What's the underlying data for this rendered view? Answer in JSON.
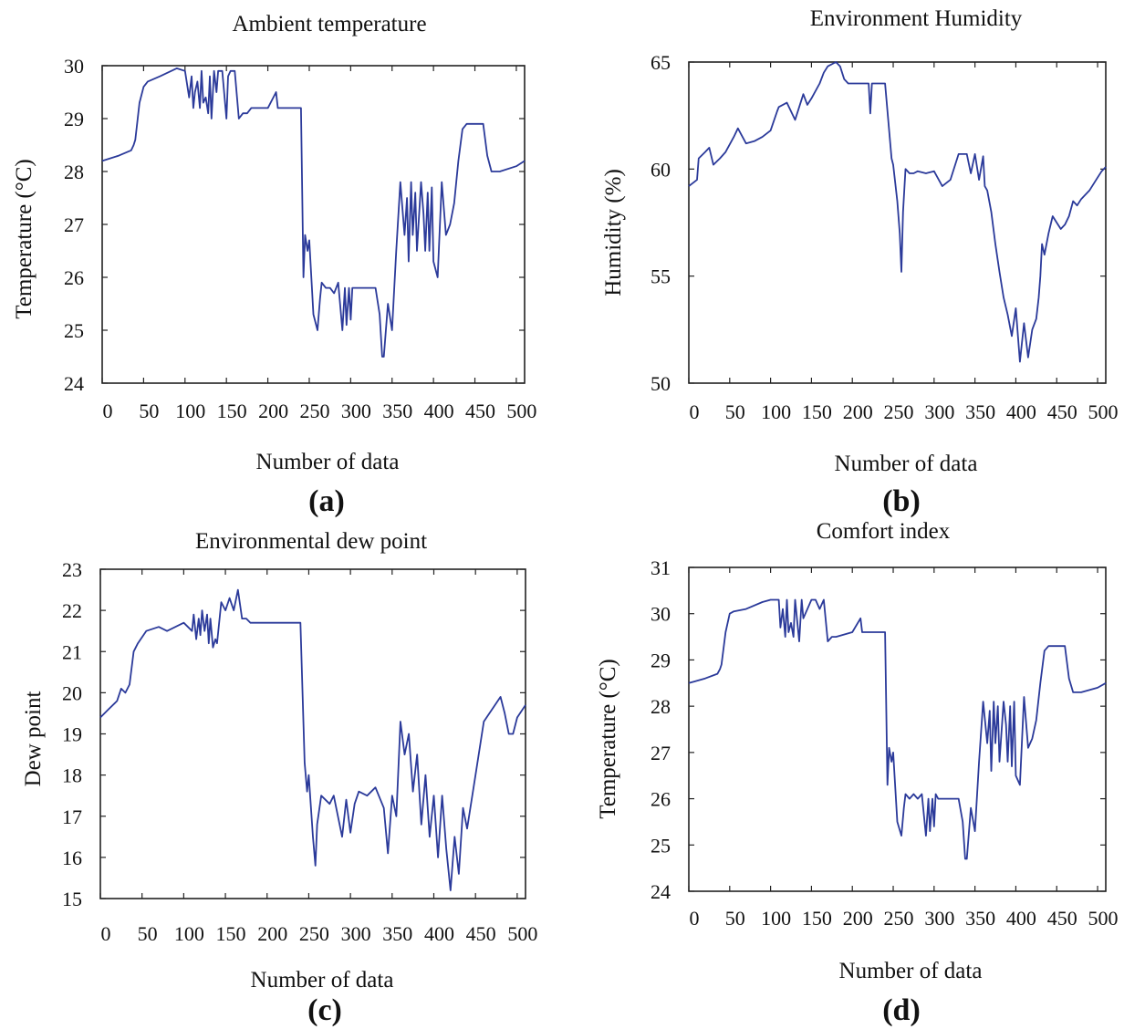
{
  "chart_data": [
    {
      "type": "line",
      "panel_label": "(a)",
      "title": "Ambient temperature",
      "xlabel": "Number of data",
      "ylabel": "Temperature (°C)",
      "xlim": [
        0,
        510
      ],
      "ylim": [
        24,
        30
      ],
      "xticks": [
        0,
        50,
        100,
        150,
        200,
        250,
        300,
        350,
        400,
        450,
        500
      ],
      "yticks": [
        24,
        25,
        26,
        27,
        28,
        29,
        30
      ],
      "grid": false,
      "series": [
        {
          "name": "Ambient temperature",
          "color": "#2b3a9a",
          "x": [
            0,
            20,
            35,
            38,
            40,
            45,
            50,
            55,
            70,
            90,
            100,
            105,
            108,
            110,
            112,
            115,
            118,
            120,
            122,
            125,
            128,
            130,
            132,
            135,
            138,
            140,
            145,
            150,
            152,
            155,
            160,
            165,
            170,
            175,
            180,
            200,
            210,
            212,
            215,
            240,
            243,
            245,
            248,
            250,
            255,
            260,
            263,
            265,
            270,
            275,
            280,
            285,
            290,
            293,
            295,
            298,
            300,
            302,
            305,
            320,
            330,
            335,
            338,
            340,
            345,
            350,
            355,
            360,
            365,
            368,
            370,
            373,
            375,
            378,
            380,
            385,
            388,
            390,
            393,
            395,
            398,
            400,
            405,
            410,
            415,
            420,
            425,
            430,
            435,
            440,
            445,
            460,
            465,
            470,
            480,
            500,
            510
          ],
          "y": [
            28.2,
            28.3,
            28.4,
            28.5,
            28.6,
            29.3,
            29.6,
            29.7,
            29.8,
            29.95,
            29.9,
            29.4,
            29.8,
            29.2,
            29.5,
            29.7,
            29.2,
            29.9,
            29.3,
            29.4,
            29.1,
            29.8,
            29.0,
            29.9,
            29.5,
            29.9,
            29.9,
            29.0,
            29.8,
            29.9,
            29.9,
            29.0,
            29.1,
            29.1,
            29.2,
            29.2,
            29.5,
            29.2,
            29.2,
            29.2,
            26.0,
            26.8,
            26.5,
            26.7,
            25.3,
            25.0,
            25.6,
            25.9,
            25.8,
            25.8,
            25.7,
            25.9,
            25.0,
            25.8,
            25.1,
            25.8,
            25.2,
            25.8,
            25.8,
            25.8,
            25.8,
            25.3,
            24.5,
            24.5,
            25.5,
            25.0,
            26.5,
            27.8,
            26.8,
            27.5,
            26.3,
            27.8,
            26.8,
            27.6,
            26.5,
            27.8,
            27.2,
            26.5,
            27.6,
            26.5,
            27.7,
            26.3,
            26.0,
            27.8,
            26.8,
            27.0,
            27.4,
            28.2,
            28.8,
            28.9,
            28.9,
            28.9,
            28.3,
            28.0,
            28.0,
            28.1,
            28.2
          ]
        }
      ]
    },
    {
      "type": "line",
      "panel_label": "(b)",
      "title": "Environment Humidity",
      "xlabel": "Number of data",
      "ylabel": "Humidity (%)",
      "xlim": [
        0,
        510
      ],
      "ylim": [
        50,
        65
      ],
      "xticks": [
        0,
        50,
        100,
        150,
        200,
        250,
        300,
        350,
        400,
        450,
        500
      ],
      "yticks": [
        50,
        55,
        60,
        65
      ],
      "grid": false,
      "series": [
        {
          "name": "Environment Humidity",
          "color": "#2b3a9a",
          "x": [
            0,
            10,
            12,
            20,
            25,
            30,
            38,
            45,
            55,
            60,
            70,
            80,
            90,
            100,
            108,
            110,
            120,
            130,
            140,
            145,
            150,
            160,
            165,
            170,
            180,
            185,
            190,
            195,
            200,
            210,
            220,
            222,
            224,
            230,
            240,
            248,
            250,
            255,
            258,
            260,
            262,
            265,
            270,
            275,
            280,
            290,
            300,
            310,
            320,
            330,
            340,
            345,
            350,
            355,
            360,
            362,
            365,
            370,
            375,
            380,
            385,
            390,
            395,
            400,
            405,
            410,
            415,
            420,
            425,
            428,
            430,
            432,
            435,
            440,
            445,
            450,
            455,
            460,
            465,
            470,
            475,
            480,
            490,
            500,
            505,
            510
          ],
          "y": [
            59.2,
            59.5,
            60.5,
            60.8,
            61.0,
            60.2,
            60.5,
            60.8,
            61.5,
            61.9,
            61.2,
            61.3,
            61.5,
            61.8,
            62.7,
            62.9,
            63.1,
            62.3,
            63.5,
            63.0,
            63.3,
            64.0,
            64.5,
            64.8,
            65.0,
            64.8,
            64.2,
            64.0,
            64.0,
            64.0,
            64.0,
            62.6,
            64.0,
            64.0,
            64.0,
            60.5,
            60.2,
            58.5,
            57.0,
            55.2,
            58.0,
            60.0,
            59.8,
            59.8,
            59.9,
            59.8,
            59.9,
            59.2,
            59.5,
            60.7,
            60.7,
            59.8,
            60.7,
            59.5,
            60.6,
            59.2,
            59.0,
            58.0,
            56.5,
            55.2,
            54.0,
            53.2,
            52.2,
            53.5,
            51.0,
            52.8,
            51.2,
            52.5,
            53.0,
            54.0,
            55.0,
            56.5,
            56.0,
            57.0,
            57.8,
            57.5,
            57.2,
            57.4,
            57.8,
            58.5,
            58.3,
            58.6,
            59.0,
            59.6,
            59.9,
            60.1
          ]
        }
      ]
    },
    {
      "type": "line",
      "panel_label": "(c)",
      "title": "Environmental dew point",
      "xlabel": "Number of data",
      "ylabel": "Dew point",
      "xlim": [
        0,
        510
      ],
      "ylim": [
        15,
        23
      ],
      "xticks": [
        0,
        50,
        100,
        150,
        200,
        250,
        300,
        350,
        400,
        450,
        500
      ],
      "yticks": [
        15,
        16,
        17,
        18,
        19,
        20,
        21,
        22,
        23
      ],
      "grid": false,
      "series": [
        {
          "name": "Environmental dew point",
          "color": "#2b3a9a",
          "x": [
            0,
            10,
            20,
            25,
            30,
            35,
            40,
            45,
            55,
            70,
            80,
            100,
            110,
            112,
            115,
            118,
            120,
            122,
            125,
            128,
            130,
            132,
            135,
            138,
            140,
            145,
            150,
            155,
            160,
            165,
            170,
            175,
            180,
            200,
            220,
            240,
            245,
            248,
            250,
            255,
            258,
            260,
            265,
            270,
            275,
            280,
            285,
            290,
            295,
            300,
            305,
            310,
            320,
            330,
            340,
            345,
            350,
            355,
            360,
            365,
            370,
            375,
            380,
            385,
            390,
            395,
            400,
            405,
            410,
            415,
            420,
            425,
            430,
            435,
            440,
            450,
            460,
            470,
            480,
            485,
            490,
            495,
            500,
            510
          ],
          "y": [
            19.4,
            19.6,
            19.8,
            20.1,
            20.0,
            20.2,
            21.0,
            21.2,
            21.5,
            21.6,
            21.5,
            21.7,
            21.5,
            21.9,
            21.3,
            21.8,
            21.4,
            22.0,
            21.5,
            21.9,
            21.2,
            21.8,
            21.1,
            21.3,
            21.2,
            22.2,
            22.0,
            22.3,
            22.0,
            22.5,
            21.8,
            21.8,
            21.7,
            21.7,
            21.7,
            21.7,
            18.3,
            17.6,
            18.0,
            16.5,
            15.8,
            16.8,
            17.5,
            17.4,
            17.3,
            17.5,
            17.0,
            16.5,
            17.4,
            16.6,
            17.3,
            17.6,
            17.5,
            17.7,
            17.2,
            16.1,
            17.5,
            17.0,
            19.3,
            18.5,
            19.0,
            17.6,
            18.5,
            16.8,
            18.0,
            16.5,
            17.5,
            16.0,
            17.5,
            16.2,
            15.2,
            16.5,
            15.6,
            17.2,
            16.7,
            18.0,
            19.3,
            19.6,
            19.9,
            19.5,
            19.0,
            19.0,
            19.4,
            19.7
          ]
        }
      ]
    },
    {
      "type": "line",
      "panel_label": "(d)",
      "title": "Comfort index",
      "xlabel": "Number of data",
      "ylabel": "Temperature (°C)",
      "xlim": [
        0,
        510
      ],
      "ylim": [
        24,
        31
      ],
      "xticks": [
        0,
        50,
        100,
        150,
        200,
        250,
        300,
        350,
        400,
        450,
        500
      ],
      "yticks": [
        24,
        25,
        26,
        27,
        28,
        29,
        30,
        31
      ],
      "grid": false,
      "series": [
        {
          "name": "Comfort index",
          "color": "#2b3a9a",
          "x": [
            0,
            20,
            35,
            38,
            40,
            45,
            50,
            55,
            70,
            90,
            100,
            110,
            112,
            115,
            118,
            120,
            122,
            125,
            128,
            130,
            135,
            138,
            140,
            150,
            155,
            160,
            165,
            170,
            175,
            180,
            200,
            210,
            212,
            215,
            240,
            243,
            245,
            248,
            250,
            255,
            260,
            263,
            265,
            270,
            275,
            280,
            285,
            290,
            293,
            295,
            298,
            300,
            302,
            305,
            320,
            330,
            335,
            338,
            340,
            345,
            350,
            355,
            360,
            365,
            368,
            370,
            373,
            375,
            378,
            380,
            385,
            388,
            390,
            393,
            395,
            398,
            400,
            405,
            410,
            415,
            420,
            425,
            430,
            435,
            440,
            445,
            460,
            465,
            470,
            480,
            500,
            510
          ],
          "y": [
            28.5,
            28.6,
            28.7,
            28.8,
            28.9,
            29.6,
            30.0,
            30.05,
            30.1,
            30.25,
            30.3,
            30.3,
            29.7,
            30.1,
            29.5,
            30.3,
            29.6,
            29.8,
            29.5,
            30.3,
            29.4,
            30.3,
            29.9,
            30.3,
            30.3,
            30.1,
            30.3,
            29.4,
            29.5,
            29.5,
            29.6,
            29.9,
            29.6,
            29.6,
            29.6,
            26.3,
            27.1,
            26.8,
            27.0,
            25.5,
            25.2,
            25.8,
            26.1,
            26.0,
            26.1,
            26.0,
            26.1,
            25.2,
            26.0,
            25.3,
            26.0,
            25.4,
            26.1,
            26.0,
            26.0,
            26.0,
            25.5,
            24.7,
            24.7,
            25.8,
            25.3,
            26.8,
            28.1,
            27.2,
            27.9,
            26.6,
            28.1,
            27.2,
            28.0,
            26.8,
            28.1,
            27.6,
            26.8,
            28.0,
            26.7,
            28.1,
            26.5,
            26.3,
            28.2,
            27.1,
            27.3,
            27.7,
            28.5,
            29.2,
            29.3,
            29.3,
            29.3,
            28.6,
            28.3,
            28.3,
            28.4,
            28.5
          ]
        }
      ]
    }
  ]
}
